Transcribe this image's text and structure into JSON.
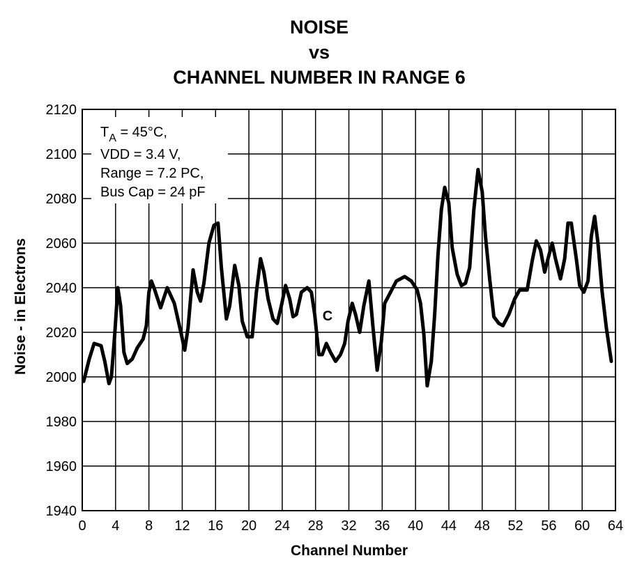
{
  "chart_data": {
    "type": "line",
    "title": [
      "NOISE",
      "vs",
      "CHANNEL NUMBER IN RANGE 6"
    ],
    "xlabel": "Channel Number",
    "ylabel": "Noise - in Electrons",
    "annotation": {
      "symbol": "T",
      "subscript": "A",
      "rest": " = 45°C,",
      "lines": [
        "VDD = 3.4 V,",
        "Range = 7.2 PC,",
        "Bus Cap = 24 pF"
      ]
    },
    "curve_label": "C",
    "xlim": [
      0,
      64
    ],
    "ylim": [
      1940,
      2120
    ],
    "xticks": [
      0,
      4,
      8,
      12,
      16,
      20,
      24,
      28,
      32,
      36,
      40,
      44,
      48,
      52,
      56,
      60,
      64
    ],
    "yticks": [
      1940,
      1960,
      1980,
      2000,
      2020,
      2040,
      2060,
      2080,
      2100,
      2120
    ],
    "grid": true,
    "series": [
      {
        "name": "C",
        "color": "#000000",
        "x": [
          0.17,
          0.84,
          1.42,
          2.26,
          2.7,
          3.2,
          3.5,
          3.9,
          4.27,
          4.6,
          5.0,
          5.4,
          6.0,
          6.6,
          7.3,
          7.7,
          8.0,
          8.3,
          8.7,
          9.4,
          10.2,
          11.05,
          11.9,
          12.3,
          12.7,
          13.3,
          13.8,
          14.2,
          14.6,
          15.2,
          15.8,
          16.3,
          16.7,
          17.3,
          17.7,
          18.3,
          18.8,
          19.2,
          19.8,
          20.4,
          20.9,
          21.4,
          21.8,
          22.3,
          22.9,
          23.4,
          23.9,
          24.4,
          24.9,
          25.3,
          25.7,
          26.3,
          27.0,
          27.5,
          27.9,
          28.4,
          28.8,
          29.3,
          29.8,
          30.4,
          31.0,
          31.5,
          31.9,
          32.4,
          32.8,
          33.3,
          33.8,
          34.4,
          34.9,
          35.4,
          35.9,
          36.3,
          37.0,
          37.7,
          38.7,
          39.5,
          40.2,
          40.6,
          41.0,
          41.4,
          41.9,
          42.3,
          42.7,
          43.1,
          43.5,
          44.0,
          44.4,
          45.0,
          45.5,
          46.0,
          46.5,
          47.0,
          47.5,
          48.0,
          48.4,
          48.9,
          49.4,
          50.0,
          50.5,
          51.2,
          51.9,
          52.5,
          53.4,
          54.0,
          54.5,
          55.0,
          55.5,
          55.9,
          56.4,
          56.8,
          57.4,
          57.9,
          58.3,
          58.7,
          59.3,
          59.7,
          60.2,
          60.7,
          61.1,
          61.5,
          61.9,
          62.4,
          62.9,
          63.5
        ],
        "values": [
          1998,
          2008,
          2015,
          2014,
          2007,
          1997,
          2000,
          2019,
          2040,
          2032,
          2011,
          2006,
          2008,
          2013,
          2017,
          2023,
          2038,
          2043,
          2039,
          2031,
          2040,
          2033,
          2019,
          2012,
          2022,
          2048,
          2038,
          2034,
          2042,
          2060,
          2068,
          2069,
          2049,
          2026,
          2032,
          2050,
          2041,
          2025,
          2018,
          2018,
          2038,
          2053,
          2047,
          2035,
          2026,
          2024,
          2032,
          2041,
          2035,
          2027,
          2028,
          2038,
          2040,
          2038,
          2028,
          2010,
          2010,
          2015,
          2011,
          2007,
          2010,
          2015,
          2025,
          2033,
          2028,
          2020,
          2032,
          2043,
          2022,
          2003,
          2016,
          2033,
          2038,
          2043,
          2045,
          2043,
          2039,
          2033,
          2019,
          1996,
          2007,
          2028,
          2055,
          2075,
          2085,
          2078,
          2058,
          2046,
          2041,
          2042,
          2049,
          2075,
          2093,
          2083,
          2063,
          2044,
          2027,
          2024,
          2023,
          2028,
          2035,
          2039,
          2039,
          2052,
          2061,
          2057,
          2047,
          2053,
          2060,
          2053,
          2044,
          2053,
          2069,
          2069,
          2053,
          2041,
          2038,
          2043,
          2063,
          2072,
          2060,
          2038,
          2022,
          2007
        ]
      }
    ]
  }
}
